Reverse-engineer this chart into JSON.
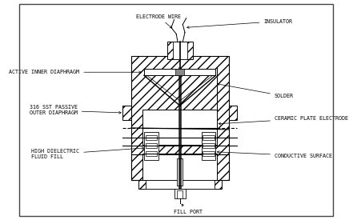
{
  "bg_color": "#ffffff",
  "line_color": "#000000",
  "fig_width": 4.46,
  "fig_height": 2.75,
  "labels": {
    "electrode_wire": "ELECTRODE WIRE",
    "insulator": "INSULATOR",
    "active_inner": "ACTIVE INNER DIAPHRAGM",
    "passive_outer": "316 SST PASSIVE\nOUTER DIAPHRAGM",
    "solder": "SOLDER",
    "ceramic_plate": "CERAMIC PLATE ELECTRODE",
    "high_dielectric": "HIGH DIELECTRIC\nFLUID FILL",
    "conductive": "CONDUCTIVE SURFACE",
    "fill_port": "FILL PORT"
  },
  "font_size": 4.8
}
